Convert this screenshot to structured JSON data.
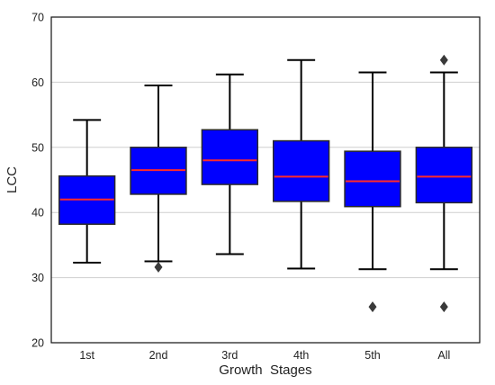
{
  "chart_data": {
    "type": "box",
    "title": "",
    "xlabel": "Growth  Stages",
    "ylabel": "LCC",
    "ylim": [
      20,
      70
    ],
    "yticks": [
      20,
      30,
      40,
      50,
      60,
      70
    ],
    "grid": "horizontal",
    "categories": [
      "1st",
      "2nd",
      "3rd",
      "4th",
      "5th",
      "All"
    ],
    "boxes": [
      {
        "category": "1st",
        "whisker_low": 32.3,
        "q1": 38.2,
        "median": 42.0,
        "q3": 45.6,
        "whisker_high": 54.2,
        "outliers": []
      },
      {
        "category": "2nd",
        "whisker_low": 32.5,
        "q1": 42.8,
        "median": 46.5,
        "q3": 50.0,
        "whisker_high": 59.5,
        "outliers": [
          31.6
        ]
      },
      {
        "category": "3rd",
        "whisker_low": 33.6,
        "q1": 44.3,
        "median": 48.0,
        "q3": 52.7,
        "whisker_high": 61.2,
        "outliers": []
      },
      {
        "category": "4th",
        "whisker_low": 31.4,
        "q1": 41.7,
        "median": 45.5,
        "q3": 51.0,
        "whisker_high": 63.4,
        "outliers": []
      },
      {
        "category": "5th",
        "whisker_low": 31.3,
        "q1": 40.9,
        "median": 44.8,
        "q3": 49.4,
        "whisker_high": 61.5,
        "outliers": [
          25.5
        ]
      },
      {
        "category": "All",
        "whisker_low": 31.3,
        "q1": 41.5,
        "median": 45.5,
        "q3": 50.0,
        "whisker_high": 61.5,
        "outliers": [
          25.5,
          63.4
        ]
      }
    ],
    "colors": {
      "box_fill": "#0000ff",
      "median_line": "#ff2a2a",
      "whisker": "#000000",
      "outlier": "#3a3a3a",
      "grid": "#cfcfcf",
      "frame": "#111111"
    }
  }
}
